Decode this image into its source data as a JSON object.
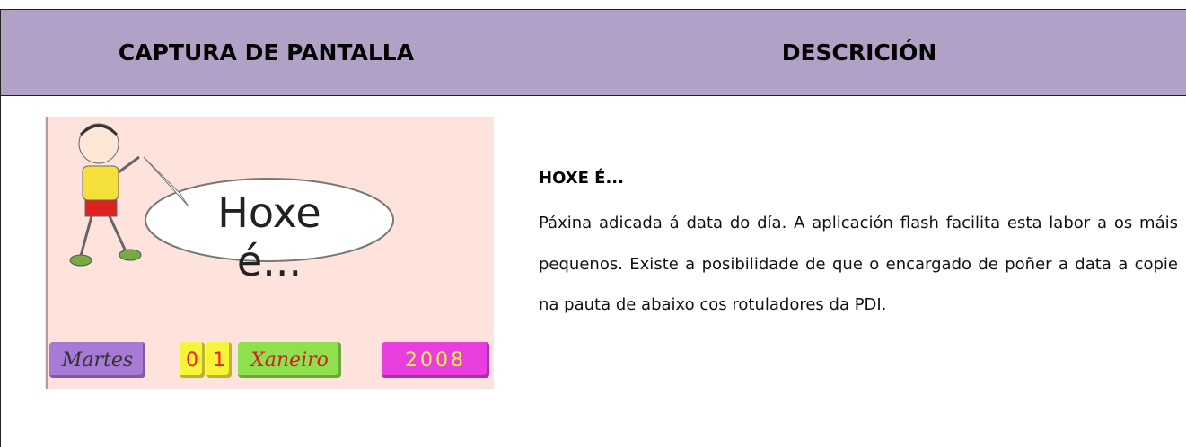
{
  "table": {
    "headers": [
      "CAPTURA DE PANTALLA",
      "DESCRICIÓN"
    ],
    "screenshot": {
      "bubble": "Hoxe é...",
      "day_name": "Martes",
      "day_digits": [
        "0",
        "1"
      ],
      "month": "Xaneiro",
      "year": "2008"
    },
    "description": {
      "title": "HOXE É...",
      "text": "Páxina adicada á data do día. A aplicación flash facilita esta labor a os máis pequenos. Existe a posibilidade de que o encargado de poñer a data a copie na pauta de abaixo cos rotuladores da PDI."
    }
  }
}
